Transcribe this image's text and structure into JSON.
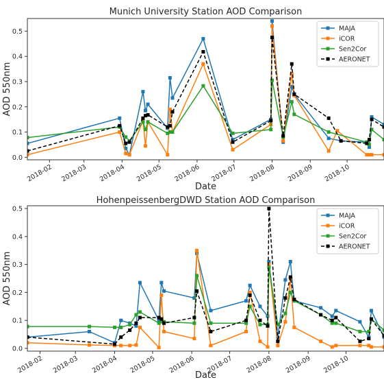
{
  "chart_data": [
    {
      "type": "line",
      "title": "Munich University Station AOD Comparison",
      "xlabel": "Date",
      "ylabel": "AOD 550nm",
      "xlim": [
        "2018-01-14",
        "2018-10-31"
      ],
      "ylim": [
        -0.01,
        0.55
      ],
      "yticks": [
        0.0,
        0.1,
        0.2,
        0.3,
        0.4,
        0.5
      ],
      "ytick_labels": [
        "0.0",
        "0.1",
        "0.2",
        "0.3",
        "0.4",
        "0.5"
      ],
      "xticks": [
        "2018-02-01",
        "2018-03-01",
        "2018-04-01",
        "2018-05-01",
        "2018-06-01",
        "2018-07-01",
        "2018-08-01",
        "2018-09-01",
        "2018-10-01"
      ],
      "xtick_labels": [
        "2018-02",
        "2018-03",
        "2018-04",
        "2018-05",
        "2018-06",
        "2018-07",
        "2018-08",
        "2018-09",
        "2018-10"
      ],
      "grid": false,
      "legend_position": "top-right",
      "series": [
        {
          "name": "MAJA",
          "color": "#1f77b4",
          "style": "solid",
          "points": [
            [
              "2018-01-14",
              0.055
            ],
            [
              "2018-03-30",
              0.155
            ],
            [
              "2018-04-04",
              0.035
            ],
            [
              "2018-04-07",
              0.01
            ],
            [
              "2018-04-18",
              0.26
            ],
            [
              "2018-04-20",
              0.185
            ],
            [
              "2018-04-22",
              0.21
            ],
            [
              "2018-05-08",
              0.115
            ],
            [
              "2018-05-10",
              0.315
            ],
            [
              "2018-05-12",
              0.235
            ],
            [
              "2018-06-06",
              0.47
            ],
            [
              "2018-06-30",
              0.07
            ],
            [
              "2018-07-31",
              0.15
            ],
            [
              "2018-08-01",
              0.54
            ],
            [
              "2018-08-10",
              0.06
            ],
            [
              "2018-08-17",
              0.28
            ],
            [
              "2018-08-19",
              0.25
            ],
            [
              "2018-09-16",
              0.075
            ],
            [
              "2018-09-26",
              0.065
            ],
            [
              "2018-10-17",
              0.06
            ],
            [
              "2018-10-19",
              0.04
            ],
            [
              "2018-10-21",
              0.16
            ],
            [
              "2018-10-31",
              0.13
            ]
          ]
        },
        {
          "name": "iCOR",
          "color": "#ff7f0e",
          "style": "solid",
          "points": [
            [
              "2018-01-14",
              0.01
            ],
            [
              "2018-03-30",
              0.1
            ],
            [
              "2018-04-04",
              0.015
            ],
            [
              "2018-04-07",
              0.01
            ],
            [
              "2018-04-18",
              0.145
            ],
            [
              "2018-04-20",
              0.045
            ],
            [
              "2018-04-22",
              0.14
            ],
            [
              "2018-05-08",
              0.01
            ],
            [
              "2018-05-10",
              0.19
            ],
            [
              "2018-05-12",
              0.1
            ],
            [
              "2018-06-06",
              0.37
            ],
            [
              "2018-06-30",
              0.03
            ],
            [
              "2018-07-31",
              0.13
            ],
            [
              "2018-08-01",
              0.52
            ],
            [
              "2018-08-10",
              0.065
            ],
            [
              "2018-08-17",
              0.33
            ],
            [
              "2018-08-19",
              0.245
            ],
            [
              "2018-09-16",
              0.025
            ],
            [
              "2018-09-23",
              0.105
            ],
            [
              "2018-10-17",
              0.01
            ],
            [
              "2018-10-19",
              0.01
            ],
            [
              "2018-10-21",
              0.01
            ],
            [
              "2018-10-31",
              0.01
            ]
          ]
        },
        {
          "name": "Sen2Cor",
          "color": "#2ca02c",
          "style": "solid",
          "points": [
            [
              "2018-01-14",
              0.078
            ],
            [
              "2018-03-30",
              0.12
            ],
            [
              "2018-04-04",
              0.08
            ],
            [
              "2018-04-07",
              0.065
            ],
            [
              "2018-04-18",
              0.14
            ],
            [
              "2018-04-20",
              0.11
            ],
            [
              "2018-04-22",
              0.14
            ],
            [
              "2018-05-08",
              0.095
            ],
            [
              "2018-05-10",
              0.1
            ],
            [
              "2018-05-12",
              0.1
            ],
            [
              "2018-06-06",
              0.283
            ],
            [
              "2018-06-30",
              0.095
            ],
            [
              "2018-07-31",
              0.11
            ],
            [
              "2018-08-01",
              0.305
            ],
            [
              "2018-08-10",
              0.08
            ],
            [
              "2018-08-17",
              0.22
            ],
            [
              "2018-08-19",
              0.17
            ],
            [
              "2018-09-16",
              0.1
            ],
            [
              "2018-10-17",
              0.06
            ],
            [
              "2018-10-19",
              0.05
            ],
            [
              "2018-10-21",
              0.11
            ],
            [
              "2018-10-31",
              0.07
            ]
          ]
        },
        {
          "name": "AERONET",
          "color": "#000000",
          "style": "dashed",
          "points": [
            [
              "2018-01-14",
              0.025
            ],
            [
              "2018-03-30",
              0.125
            ],
            [
              "2018-04-04",
              0.055
            ],
            [
              "2018-04-07",
              0.06
            ],
            [
              "2018-04-18",
              0.155
            ],
            [
              "2018-04-20",
              0.165
            ],
            [
              "2018-04-22",
              0.168
            ],
            [
              "2018-05-08",
              0.12
            ],
            [
              "2018-05-10",
              0.125
            ],
            [
              "2018-05-12",
              0.18
            ],
            [
              "2018-06-06",
              0.418
            ],
            [
              "2018-06-30",
              0.06
            ],
            [
              "2018-07-31",
              0.145
            ],
            [
              "2018-08-01",
              0.475
            ],
            [
              "2018-08-10",
              0.085
            ],
            [
              "2018-08-17",
              0.37
            ],
            [
              "2018-08-19",
              0.25
            ],
            [
              "2018-09-16",
              0.155
            ],
            [
              "2018-09-26",
              0.065
            ],
            [
              "2018-10-17",
              0.055
            ],
            [
              "2018-10-19",
              0.07
            ],
            [
              "2018-10-21",
              0.15
            ],
            [
              "2018-10-31",
              0.12
            ]
          ]
        }
      ]
    },
    {
      "type": "line",
      "title": "HohenpeissenbergDWD Station AOD Comparison",
      "xlabel": "Date",
      "ylabel": "AOD 550nm",
      "xlim": [
        "2018-01-22",
        "2018-10-31"
      ],
      "ylim": [
        -0.01,
        0.51
      ],
      "yticks": [
        0.0,
        0.1,
        0.2,
        0.3,
        0.4,
        0.5
      ],
      "ytick_labels": [
        "0.0",
        "0.1",
        "0.2",
        "0.3",
        "0.4",
        "0.5"
      ],
      "xticks": [
        "2018-02-01",
        "2018-03-01",
        "2018-04-01",
        "2018-05-01",
        "2018-06-01",
        "2018-07-01",
        "2018-08-01",
        "2018-09-01",
        "2018-10-01"
      ],
      "xtick_labels": [
        "2018-02",
        "2018-03",
        "2018-04",
        "2018-05",
        "2018-06",
        "2018-07",
        "2018-08",
        "2018-09",
        "2018-10"
      ],
      "grid": false,
      "legend_position": "top-right",
      "series": [
        {
          "name": "MAJA",
          "color": "#1f77b4",
          "style": "solid",
          "points": [
            [
              "2018-01-22",
              0.04
            ],
            [
              "2018-03-12",
              0.06
            ],
            [
              "2018-04-01",
              0.02
            ],
            [
              "2018-04-06",
              0.1
            ],
            [
              "2018-04-13",
              0.09
            ],
            [
              "2018-04-18",
              0.08
            ],
            [
              "2018-04-21",
              0.235
            ],
            [
              "2018-05-06",
              0.1
            ],
            [
              "2018-05-08",
              0.235
            ],
            [
              "2018-05-10",
              0.205
            ],
            [
              "2018-06-03",
              0.18
            ],
            [
              "2018-06-05",
              0.34
            ],
            [
              "2018-06-16",
              0.135
            ],
            [
              "2018-07-14",
              0.17
            ],
            [
              "2018-07-17",
              0.225
            ],
            [
              "2018-07-25",
              0.15
            ],
            [
              "2018-07-31",
              0.115
            ],
            [
              "2018-08-01",
              0.31
            ],
            [
              "2018-08-08",
              0.04
            ],
            [
              "2018-08-14",
              0.245
            ],
            [
              "2018-08-18",
              0.31
            ],
            [
              "2018-08-21",
              0.17
            ],
            [
              "2018-09-11",
              0.145
            ],
            [
              "2018-09-20",
              0.115
            ],
            [
              "2018-09-23",
              0.135
            ],
            [
              "2018-10-12",
              0.095
            ],
            [
              "2018-10-19",
              0.04
            ],
            [
              "2018-10-21",
              0.135
            ],
            [
              "2018-10-31",
              0.04
            ]
          ]
        },
        {
          "name": "iCOR",
          "color": "#ff7f0e",
          "style": "solid",
          "points": [
            [
              "2018-01-22",
              0.02
            ],
            [
              "2018-03-12",
              0.012
            ],
            [
              "2018-04-01",
              0.01
            ],
            [
              "2018-04-06",
              0.01
            ],
            [
              "2018-04-13",
              0.01
            ],
            [
              "2018-04-18",
              0.012
            ],
            [
              "2018-04-21",
              0.075
            ],
            [
              "2018-05-06",
              0.003
            ],
            [
              "2018-05-08",
              0.19
            ],
            [
              "2018-05-10",
              0.06
            ],
            [
              "2018-06-03",
              0.035
            ],
            [
              "2018-06-05",
              0.35
            ],
            [
              "2018-06-16",
              0.01
            ],
            [
              "2018-07-14",
              0.06
            ],
            [
              "2018-07-17",
              0.2
            ],
            [
              "2018-07-25",
              0.025
            ],
            [
              "2018-07-31",
              0.005
            ],
            [
              "2018-08-01",
              0.3
            ],
            [
              "2018-08-08",
              0.01
            ],
            [
              "2018-08-14",
              0.095
            ],
            [
              "2018-08-18",
              0.25
            ],
            [
              "2018-08-21",
              0.075
            ],
            [
              "2018-09-11",
              0.025
            ],
            [
              "2018-09-20",
              0.005
            ],
            [
              "2018-09-23",
              0.01
            ],
            [
              "2018-10-12",
              0.01
            ],
            [
              "2018-10-19",
              0.01
            ],
            [
              "2018-10-21",
              0.005
            ],
            [
              "2018-10-31",
              0.005
            ]
          ]
        },
        {
          "name": "Sen2Cor",
          "color": "#2ca02c",
          "style": "solid",
          "points": [
            [
              "2018-01-22",
              0.078
            ],
            [
              "2018-03-12",
              0.078
            ],
            [
              "2018-04-01",
              0.075
            ],
            [
              "2018-04-06",
              0.075
            ],
            [
              "2018-04-13",
              0.085
            ],
            [
              "2018-04-18",
              0.12
            ],
            [
              "2018-04-21",
              0.13
            ],
            [
              "2018-05-06",
              0.09
            ],
            [
              "2018-05-08",
              0.095
            ],
            [
              "2018-05-10",
              0.095
            ],
            [
              "2018-06-03",
              0.09
            ],
            [
              "2018-06-05",
              0.26
            ],
            [
              "2018-06-16",
              0.09
            ],
            [
              "2018-07-14",
              0.09
            ],
            [
              "2018-07-17",
              0.15
            ],
            [
              "2018-07-25",
              0.085
            ],
            [
              "2018-07-31",
              0.085
            ],
            [
              "2018-08-01",
              0.29
            ],
            [
              "2018-08-08",
              0.085
            ],
            [
              "2018-08-14",
              0.125
            ],
            [
              "2018-08-18",
              0.2
            ],
            [
              "2018-08-21",
              0.17
            ],
            [
              "2018-09-11",
              0.12
            ],
            [
              "2018-09-20",
              0.09
            ],
            [
              "2018-09-23",
              0.09
            ],
            [
              "2018-10-12",
              0.06
            ],
            [
              "2018-10-19",
              0.06
            ],
            [
              "2018-10-21",
              0.105
            ],
            [
              "2018-10-31",
              0.065
            ]
          ]
        },
        {
          "name": "AERONET",
          "color": "#000000",
          "style": "dashed",
          "points": [
            [
              "2018-01-22",
              0.04
            ],
            [
              "2018-04-01",
              0.015
            ],
            [
              "2018-04-06",
              0.04
            ],
            [
              "2018-04-13",
              0.065
            ],
            [
              "2018-04-18",
              0.09
            ],
            [
              "2018-04-21",
              0.11
            ],
            [
              "2018-05-06",
              0.11
            ],
            [
              "2018-05-08",
              0.105
            ],
            [
              "2018-05-10",
              0.09
            ],
            [
              "2018-06-03",
              0.11
            ],
            [
              "2018-06-05",
              0.205
            ],
            [
              "2018-06-16",
              0.06
            ],
            [
              "2018-07-14",
              0.1
            ],
            [
              "2018-07-17",
              0.19
            ],
            [
              "2018-07-25",
              0.1
            ],
            [
              "2018-07-31",
              0.08
            ],
            [
              "2018-08-01",
              0.5
            ],
            [
              "2018-08-08",
              0.025
            ],
            [
              "2018-08-14",
              0.18
            ],
            [
              "2018-08-18",
              0.255
            ],
            [
              "2018-08-21",
              0.175
            ],
            [
              "2018-09-11",
              0.12
            ],
            [
              "2018-09-20",
              0.1
            ],
            [
              "2018-09-23",
              0.11
            ],
            [
              "2018-10-12",
              0.025
            ],
            [
              "2018-10-19",
              0.035
            ],
            [
              "2018-10-21",
              0.105
            ],
            [
              "2018-10-31",
              0.045
            ]
          ]
        }
      ]
    }
  ]
}
